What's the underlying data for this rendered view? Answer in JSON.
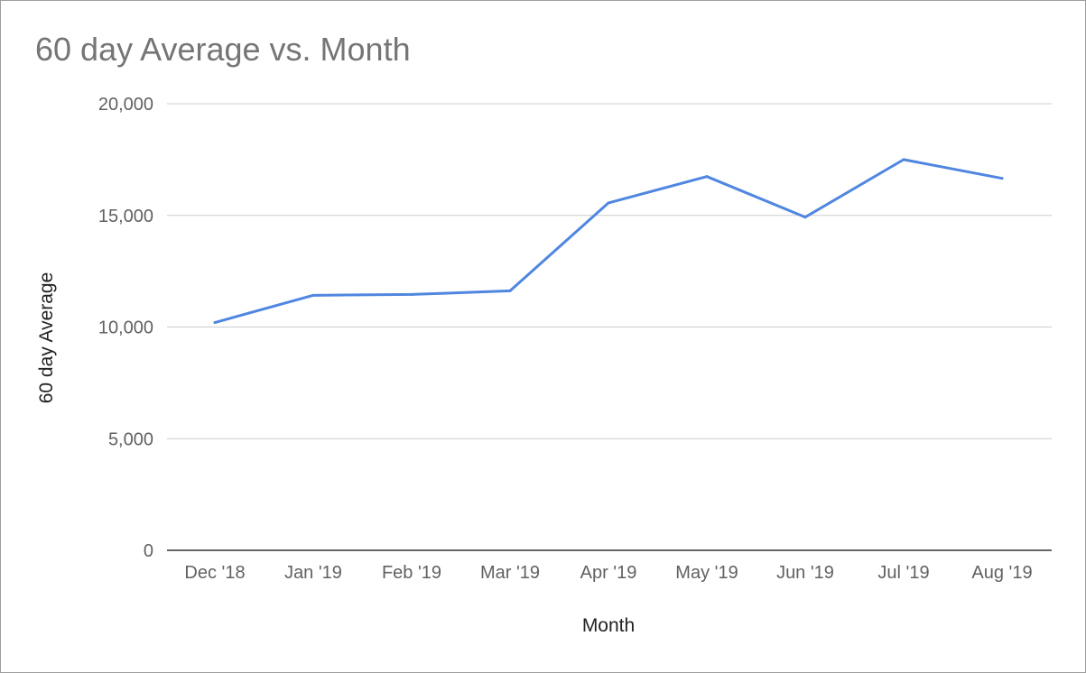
{
  "chart_data": {
    "type": "line",
    "title": "60 day Average vs. Month",
    "xlabel": "Month",
    "ylabel": "60 day Average",
    "categories": [
      "Dec '18",
      "Jan '19",
      "Feb '19",
      "Mar '19",
      "Apr '19",
      "May '19",
      "Jun '19",
      "Jul '19",
      "Aug '19"
    ],
    "series": [
      {
        "values": [
          10200,
          11420,
          11460,
          11620,
          15560,
          16740,
          14920,
          17500,
          16660
        ],
        "color": "#5086e0"
      }
    ],
    "ylim": [
      0,
      20000
    ],
    "yticks": [
      0,
      5000,
      10000,
      15000,
      20000
    ],
    "ytick_labels": [
      "0",
      "5,000",
      "10,000",
      "15,000",
      "20,000"
    ],
    "grid": true,
    "legend": "none"
  }
}
